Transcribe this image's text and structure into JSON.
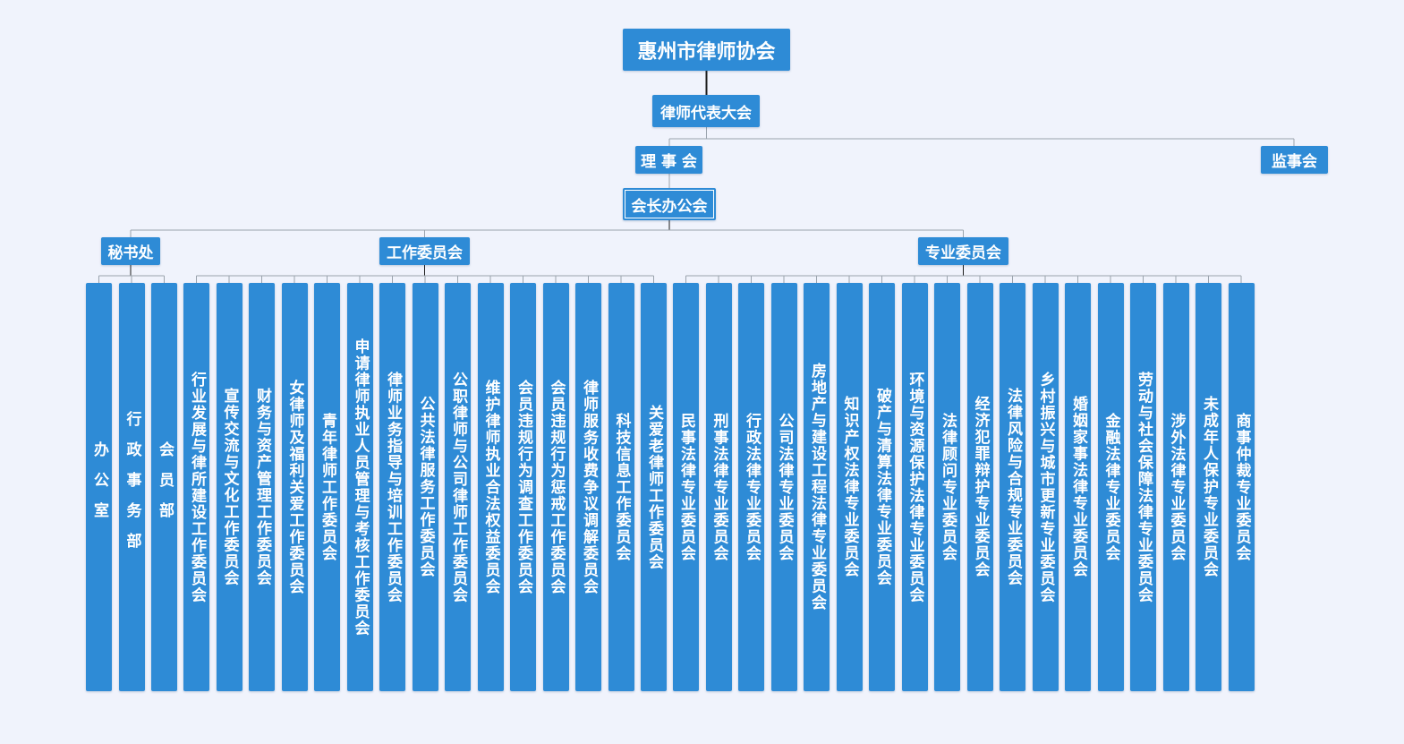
{
  "colors": {
    "background": "#f0f3fc",
    "node_fill": "#2e8bd6",
    "node_text": "#ffffff",
    "connector_main": "#1c1c1c",
    "connector_light": "#9aa3ad"
  },
  "root": {
    "label": "惠州市律师协会",
    "child": {
      "label": "律师代表大会",
      "children": [
        {
          "label": "理 事 会",
          "child": {
            "label": "会长办公会",
            "groups": [
              {
                "label": "秘书处",
                "items": [
                  "办公室",
                  "行政事务部",
                  "会员部"
                ]
              },
              {
                "label": "工作委员会",
                "items": [
                  "行业发展与律所建设工作委员会",
                  "宣传交流与文化工作委员会",
                  "财务与资产管理工作委员会",
                  "女律师及福利关爱工作委员会",
                  "青年律师工作委员会",
                  "申请律师执业人员管理与考核工作委员会",
                  "律师业务指导与培训工作委员会",
                  "公共法律服务工作委员会",
                  "公职律师与公司律师工作委员会",
                  "维护律师执业合法权益委员会",
                  "会员违规行为调查工作委员会",
                  "会员违规行为惩戒工作委员会",
                  "律师服务收费争议调解委员会",
                  "科技信息工作委员会",
                  "关爱老律师工作委员会"
                ]
              },
              {
                "label": "专业委员会",
                "items": [
                  "民事法律专业委员会",
                  "刑事法律专业委员会",
                  "行政法律专业委员会",
                  "公司法律专业委员会",
                  "房地产与建设工程法律专业委员会",
                  "知识产权法律专业委员会",
                  "破产与清算法律专业委员会",
                  "环境与资源保护法律专业委员会",
                  "法律顾问专业委员会",
                  "经济犯罪辩护专业委员会",
                  "法律风险与合规专业委员会",
                  "乡村振兴与城市更新专业委员会",
                  "婚姻家事法律专业委员会",
                  "金融法律专业委员会",
                  "劳动与社会保障法律专业委员会",
                  "涉外法律专业委员会",
                  "未成年人保护专业委员会",
                  "商事仲裁专业委员会"
                ]
              }
            ]
          }
        },
        {
          "label": "监事会"
        }
      ]
    }
  }
}
